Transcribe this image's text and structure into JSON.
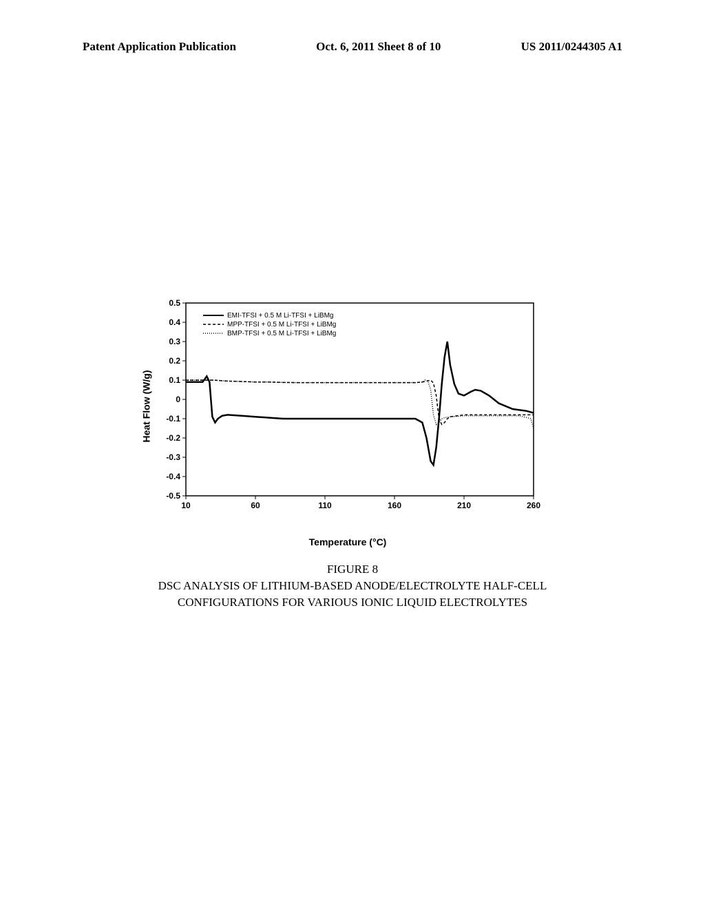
{
  "header": {
    "left": "Patent Application Publication",
    "center": "Oct. 6, 2011  Sheet 8 of 10",
    "right": "US 2011/0244305 A1"
  },
  "chart": {
    "type": "line",
    "ylabel": "Heat Flow (W/g)",
    "xlabel": "Temperature (°C)",
    "xlim": [
      10,
      260
    ],
    "ylim": [
      -0.5,
      0.5
    ],
    "xticks": [
      10,
      60,
      110,
      160,
      210,
      260
    ],
    "yticks": [
      -0.5,
      -0.4,
      -0.3,
      -0.2,
      -0.1,
      0,
      0.1,
      0.2,
      0.3,
      0.4,
      0.5
    ],
    "background_color": "#ffffff",
    "axis_color": "#000000",
    "axis_width": 1.5,
    "label_fontsize": 14,
    "tick_fontsize": 12,
    "legend_fontsize": 10,
    "legend_position": "top-left",
    "series": [
      {
        "name": "EMI-TFSI + 0.5 M Li-TFSI + LiBMg",
        "color": "#000000",
        "line_style": "solid",
        "line_width": 2.5,
        "points": [
          [
            10,
            0.09
          ],
          [
            15,
            0.09
          ],
          [
            22,
            0.09
          ],
          [
            25,
            0.12
          ],
          [
            27,
            0.09
          ],
          [
            29,
            -0.09
          ],
          [
            31,
            -0.12
          ],
          [
            33,
            -0.1
          ],
          [
            36,
            -0.085
          ],
          [
            40,
            -0.08
          ],
          [
            50,
            -0.085
          ],
          [
            60,
            -0.09
          ],
          [
            70,
            -0.095
          ],
          [
            80,
            -0.1
          ],
          [
            90,
            -0.1
          ],
          [
            100,
            -0.1
          ],
          [
            110,
            -0.1
          ],
          [
            120,
            -0.1
          ],
          [
            130,
            -0.1
          ],
          [
            140,
            -0.1
          ],
          [
            150,
            -0.1
          ],
          [
            160,
            -0.1
          ],
          [
            170,
            -0.1
          ],
          [
            175,
            -0.1
          ],
          [
            180,
            -0.12
          ],
          [
            183,
            -0.2
          ],
          [
            186,
            -0.32
          ],
          [
            188,
            -0.34
          ],
          [
            190,
            -0.25
          ],
          [
            192,
            -0.1
          ],
          [
            194,
            0.08
          ],
          [
            196,
            0.22
          ],
          [
            198,
            0.3
          ],
          [
            200,
            0.18
          ],
          [
            203,
            0.08
          ],
          [
            206,
            0.03
          ],
          [
            210,
            0.02
          ],
          [
            215,
            0.04
          ],
          [
            218,
            0.05
          ],
          [
            222,
            0.045
          ],
          [
            228,
            0.02
          ],
          [
            235,
            -0.02
          ],
          [
            245,
            -0.05
          ],
          [
            255,
            -0.06
          ],
          [
            260,
            -0.07
          ]
        ]
      },
      {
        "name": "MPP-TFSI + 0.5 M Li-TFSI + LiBMg",
        "color": "#000000",
        "line_style": "dashed",
        "line_width": 1.5,
        "dash_pattern": "4,3",
        "points": [
          [
            10,
            0.1
          ],
          [
            15,
            0.1
          ],
          [
            25,
            0.1
          ],
          [
            30,
            0.1
          ],
          [
            40,
            0.095
          ],
          [
            50,
            0.093
          ],
          [
            60,
            0.09
          ],
          [
            70,
            0.09
          ],
          [
            80,
            0.088
          ],
          [
            90,
            0.087
          ],
          [
            100,
            0.087
          ],
          [
            110,
            0.087
          ],
          [
            120,
            0.087
          ],
          [
            130,
            0.087
          ],
          [
            140,
            0.087
          ],
          [
            150,
            0.087
          ],
          [
            160,
            0.087
          ],
          [
            170,
            0.087
          ],
          [
            175,
            0.087
          ],
          [
            180,
            0.09
          ],
          [
            183,
            0.095
          ],
          [
            186,
            0.1
          ],
          [
            188,
            0.085
          ],
          [
            190,
            0.02
          ],
          [
            192,
            -0.1
          ],
          [
            194,
            -0.13
          ],
          [
            196,
            -0.12
          ],
          [
            198,
            -0.1
          ],
          [
            200,
            -0.09
          ],
          [
            205,
            -0.085
          ],
          [
            210,
            -0.08
          ],
          [
            220,
            -0.08
          ],
          [
            230,
            -0.08
          ],
          [
            240,
            -0.08
          ],
          [
            250,
            -0.08
          ],
          [
            258,
            -0.08
          ],
          [
            260,
            -0.08
          ]
        ]
      },
      {
        "name": "BMP-TFSI + 0.5 M Li-TFSI + LiBMg",
        "color": "#000000",
        "line_style": "dotted",
        "line_width": 1.5,
        "dash_pattern": "1,2",
        "points": [
          [
            10,
            0.1
          ],
          [
            15,
            0.1
          ],
          [
            25,
            0.1
          ],
          [
            30,
            0.1
          ],
          [
            40,
            0.095
          ],
          [
            50,
            0.093
          ],
          [
            60,
            0.09
          ],
          [
            70,
            0.09
          ],
          [
            80,
            0.088
          ],
          [
            90,
            0.087
          ],
          [
            100,
            0.087
          ],
          [
            110,
            0.087
          ],
          [
            120,
            0.087
          ],
          [
            130,
            0.087
          ],
          [
            140,
            0.087
          ],
          [
            150,
            0.087
          ],
          [
            160,
            0.087
          ],
          [
            170,
            0.087
          ],
          [
            175,
            0.087
          ],
          [
            180,
            0.09
          ],
          [
            182,
            0.1
          ],
          [
            184,
            0.095
          ],
          [
            186,
            0.05
          ],
          [
            188,
            -0.08
          ],
          [
            190,
            -0.13
          ],
          [
            192,
            -0.12
          ],
          [
            194,
            -0.1
          ],
          [
            196,
            -0.095
          ],
          [
            200,
            -0.09
          ],
          [
            205,
            -0.088
          ],
          [
            210,
            -0.085
          ],
          [
            220,
            -0.085
          ],
          [
            230,
            -0.085
          ],
          [
            240,
            -0.085
          ],
          [
            250,
            -0.085
          ],
          [
            258,
            -0.1
          ],
          [
            260,
            -0.15
          ]
        ]
      }
    ]
  },
  "caption": {
    "line1": "FIGURE 8",
    "line2": "DSC ANALYSIS OF LITHIUM-BASED ANODE/ELECTROLYTE HALF-CELL",
    "line3": "CONFIGURATIONS FOR VARIOUS IONIC LIQUID ELECTROLYTES"
  }
}
